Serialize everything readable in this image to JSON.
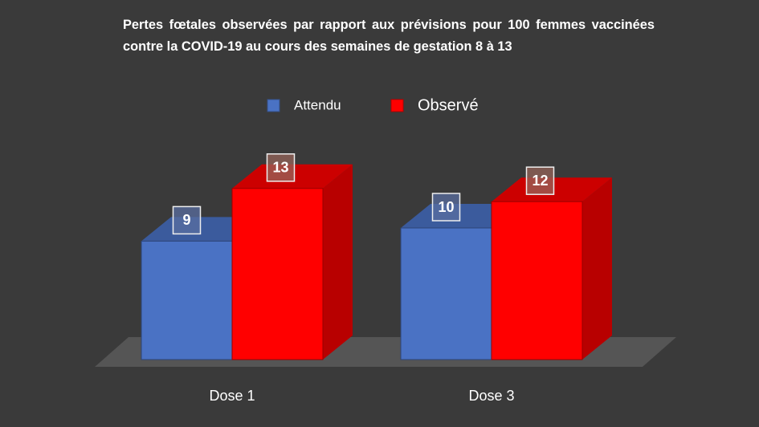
{
  "chart_data": {
    "type": "bar3d",
    "title": "Pertes fœtales observées par rapport aux prévisions pour 100 femmes vaccinées contre la COVID-19 au cours des semaines de gestation 8 à 13",
    "categories": [
      "Dose 1",
      "Dose 3"
    ],
    "series": [
      {
        "name": "Attendu",
        "color": "#4a72c4",
        "values": [
          9,
          10
        ]
      },
      {
        "name": "Observé",
        "color": "#ff0000",
        "values": [
          13,
          12
        ]
      }
    ],
    "legend": "top"
  }
}
